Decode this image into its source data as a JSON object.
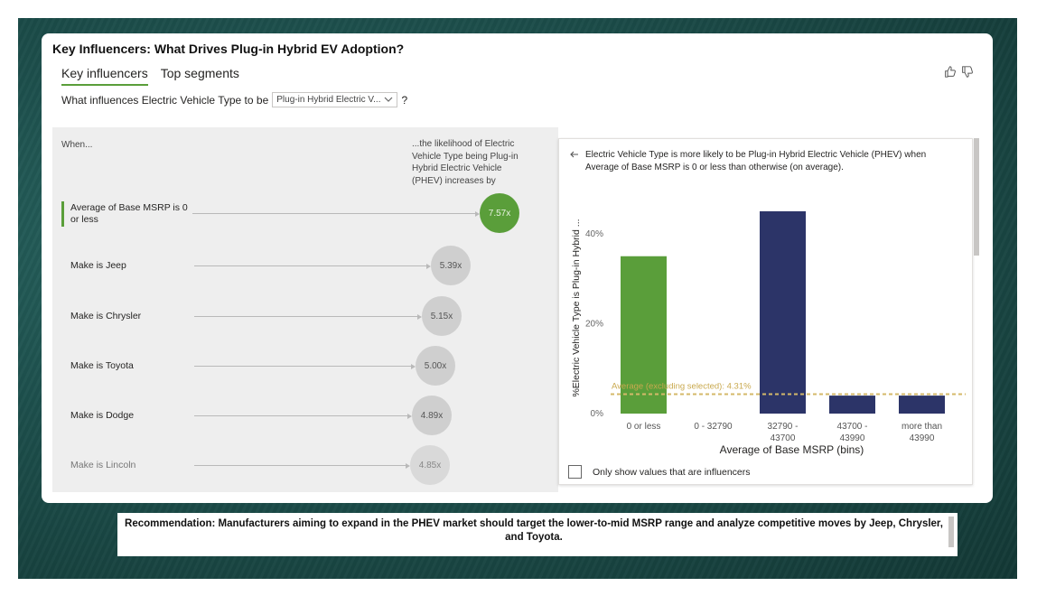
{
  "card": {
    "title": "Key Influencers: What Drives Plug-in Hybrid EV Adoption?"
  },
  "tabs": [
    {
      "label": "Key influencers",
      "active": true
    },
    {
      "label": "Top segments",
      "active": false
    }
  ],
  "question": {
    "prefix": "What influences Electric Vehicle Type to be",
    "selected": "Plug-in Hybrid Electric V...",
    "suffix": "?"
  },
  "left_panel": {
    "when_label": "When...",
    "likelihood_label": "...the likelihood of Electric Vehicle Type being Plug-in Hybrid Electric Vehicle (PHEV) increases by",
    "influencers": [
      {
        "label": "Average of Base MSRP is 0 or less",
        "factor": "7.57x",
        "selected": true
      },
      {
        "label": "Make is Jeep",
        "factor": "5.39x",
        "selected": false
      },
      {
        "label": "Make is Chrysler",
        "factor": "5.15x",
        "selected": false
      },
      {
        "label": "Make is Toyota",
        "factor": "5.00x",
        "selected": false
      },
      {
        "label": "Make is Dodge",
        "factor": "4.89x",
        "selected": false
      },
      {
        "label": "Make is Lincoln",
        "factor": "4.85x",
        "selected": false
      }
    ]
  },
  "right_panel": {
    "back_icon": "arrow-left-icon",
    "description": "Electric Vehicle Type is more likely to be Plug-in Hybrid Electric Vehicle (PHEV) when Average of Base MSRP is 0 or less than otherwise (on average).",
    "checkbox_label": "Only show values that are influencers",
    "checkbox_checked": false
  },
  "chart_data": {
    "type": "bar",
    "categories": [
      "0 or less",
      "0 - 32790",
      "32790 - 43700",
      "43700 - 43990",
      "more than 43990"
    ],
    "category_lines": [
      [
        "0 or less"
      ],
      [
        "0 - 32790"
      ],
      [
        "32790 -",
        "43700"
      ],
      [
        "43700 -",
        "43990"
      ],
      [
        "more than",
        "43990"
      ]
    ],
    "values": [
      35,
      0,
      45,
      4,
      4
    ],
    "bar_colors": [
      "#5a9e3a",
      "#2c3468",
      "#2c3468",
      "#2c3468",
      "#2c3468"
    ],
    "xlabel": "Average of Base MSRP (bins)",
    "ylabel": "%Electric Vehicle Type is Plug-in Hybrid ...",
    "yticks": [
      "0%",
      "20%",
      "40%"
    ],
    "ytick_values": [
      0,
      20,
      40
    ],
    "ylim": [
      0,
      47
    ],
    "reference_line": {
      "label": "Average (excluding selected): 4.31%",
      "value": 4.31,
      "color": "#d4b96a"
    }
  },
  "recommendation": {
    "text": "Recommendation: Manufacturers aiming to expand in the PHEV market should target the lower-to-mid MSRP range and analyze competitive moves by Jeep, Chrysler, and Toyota."
  },
  "colors": {
    "accent_green": "#5a9e3a",
    "bar_navy": "#2c3468",
    "background_teal": "#1d4f4c"
  }
}
